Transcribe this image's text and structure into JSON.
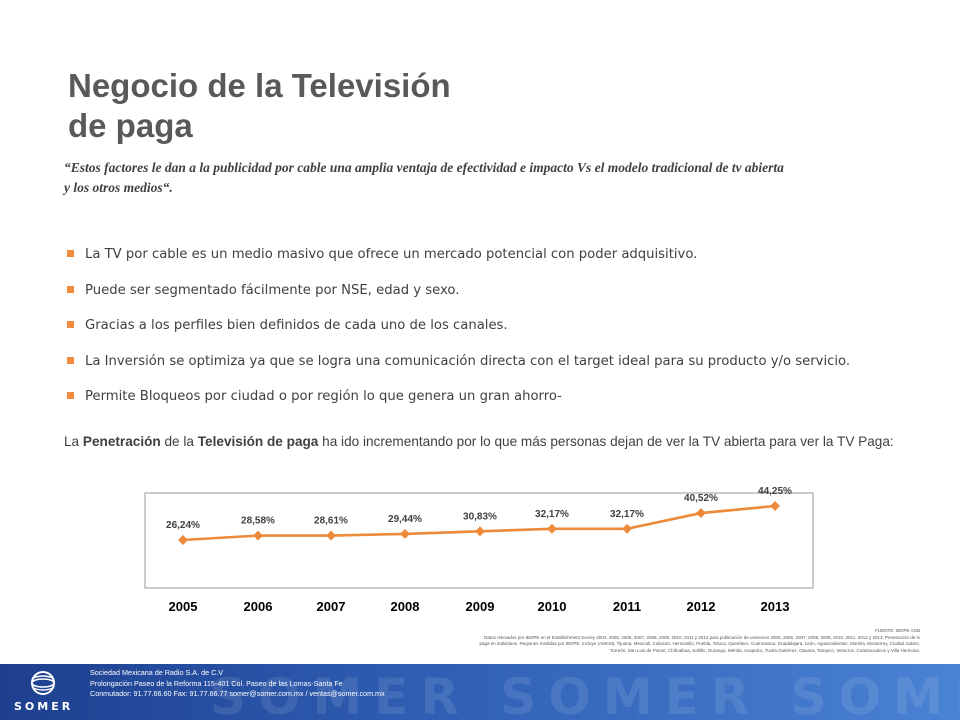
{
  "title": {
    "line1": "Negocio de la Televisión",
    "line2": "de paga"
  },
  "quote": "“Estos factores le dan a la publicidad por cable una amplia ventaja de efectividad e impacto Vs el modelo tradicional de tv abierta y los otros medios“.",
  "bullets": [
    "La TV por cable es un medio masivo que ofrece un mercado potencial con poder adquisitivo.",
    "Puede ser segmentado fácilmente por NSE, edad y sexo.",
    "Gracias a los perfiles bien definidos de cada uno de los canales.",
    "La Inversión se optimiza ya que se logra una comunicación directa con el target ideal para su producto y/o servicio.",
    "Permite Bloqueos por ciudad o por región lo que genera un gran ahorro-"
  ],
  "paragraph": {
    "p1": "La ",
    "b1": "Penetración",
    "p2": " de la ",
    "b2": "Televisión de paga",
    "p3": " ha ido incrementando por lo que más personas dejan de ver la TV abierta para ver la TV Paga:"
  },
  "chart_data": {
    "type": "line",
    "categories": [
      "2005",
      "2006",
      "2007",
      "2008",
      "2009",
      "2010",
      "2011",
      "2012",
      "2013"
    ],
    "values": [
      26.24,
      28.58,
      28.61,
      29.44,
      30.83,
      32.17,
      32.17,
      40.52,
      44.25
    ],
    "labels": [
      "26,24%",
      "28,58%",
      "28,61%",
      "29,44%",
      "30,83%",
      "32,17%",
      "32,17%",
      "40,52%",
      "44,25%"
    ],
    "color": "#ed8a3a",
    "ylim": [
      0,
      50
    ]
  },
  "source": {
    "line1": "FUENTE: IBOPE AGB",
    "line2": "Datos relevados por IBOPE en el Establishment Survey 2004, 2005, 2006, 2007, 2008, 2009, 2010, 2011 y 2012 para publicación de universos 2005, 2006, 2007, 2008, 2009, 2010, 2011, 2012 y 2013. Penetración de tv",
    "line3": "paga en individuos. Regiones medidas por IBOPE. Incluye (AMCM), Tijuana, Mexicali, Culiacán, Hermosillo, Puebla, Toluca, Querétaro, Cuernavaca, Guadalajara, León, Aguascalientes, Morelia, Monterrey, Ciudad Juárez,",
    "line4": "Torreón, San Luis de Potosí, Chihuahua, Saltillo, Durango, Mérida, Acapulco, Tuxtla Gutiérrez, Oaxaca, Tampico, Veracruz, Coatzacoalcos y Villa Hermosa."
  },
  "footer": {
    "logo": "SOMER",
    "watermark": "SOMER SOMER SOMER SO",
    "line1": "Sociedad Mexicana de Radio S.A. de C.V",
    "line2": "Prolongación Paseo de la Reforma 115-401  Col. Paseo de las Lomas-Santa Fe",
    "line3": "Conmutador: 91.77.66.60   Fax: 91.77.66.77   somer@somer.com.mx / ventas@somer.com.mx"
  }
}
